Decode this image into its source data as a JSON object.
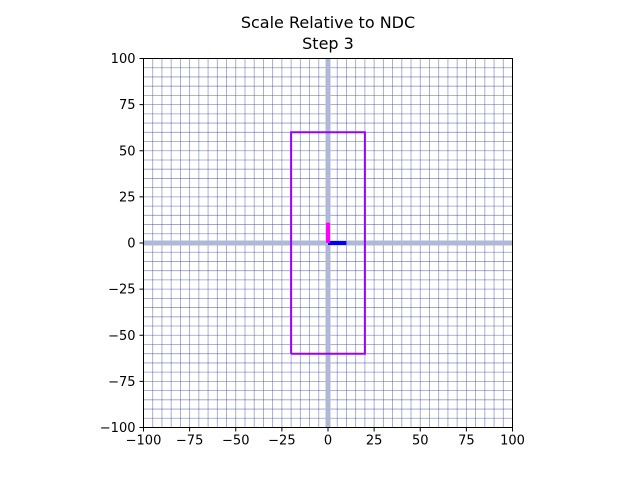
{
  "chart_data": {
    "type": "scatter",
    "title": "Scale Relative to NDC",
    "subtitle": "Step 3",
    "xlim": [
      -100,
      100
    ],
    "ylim": [
      -100,
      100
    ],
    "xticks": [
      -100,
      -75,
      -50,
      -25,
      0,
      25,
      50,
      75,
      100
    ],
    "yticks": [
      -100,
      -75,
      -50,
      -25,
      0,
      25,
      50,
      75,
      100
    ],
    "xtick_labels": [
      "−100",
      "−75",
      "−50",
      "−25",
      "0",
      "25",
      "50",
      "75",
      "100"
    ],
    "ytick_labels": [
      "−100",
      "−75",
      "−50",
      "−25",
      "0",
      "25",
      "50",
      "75",
      "100"
    ],
    "grid": true,
    "grid_spacing": 5,
    "shapes": [
      {
        "name": "rectangle",
        "color": "#9900ff",
        "points": [
          [
            -20,
            -60
          ],
          [
            20,
            -60
          ],
          [
            20,
            60
          ],
          [
            -20,
            60
          ],
          [
            -20,
            -60
          ]
        ]
      },
      {
        "name": "x-axis-marker",
        "color": "#0000ff",
        "points": [
          [
            0,
            0
          ],
          [
            10,
            0
          ]
        ]
      },
      {
        "name": "y-axis-marker",
        "color": "#ff00ff",
        "points": [
          [
            0,
            0
          ],
          [
            0,
            11
          ]
        ]
      }
    ],
    "axis_lines_color": "#b0b8d8",
    "grid_color": "#3a4a9a"
  }
}
